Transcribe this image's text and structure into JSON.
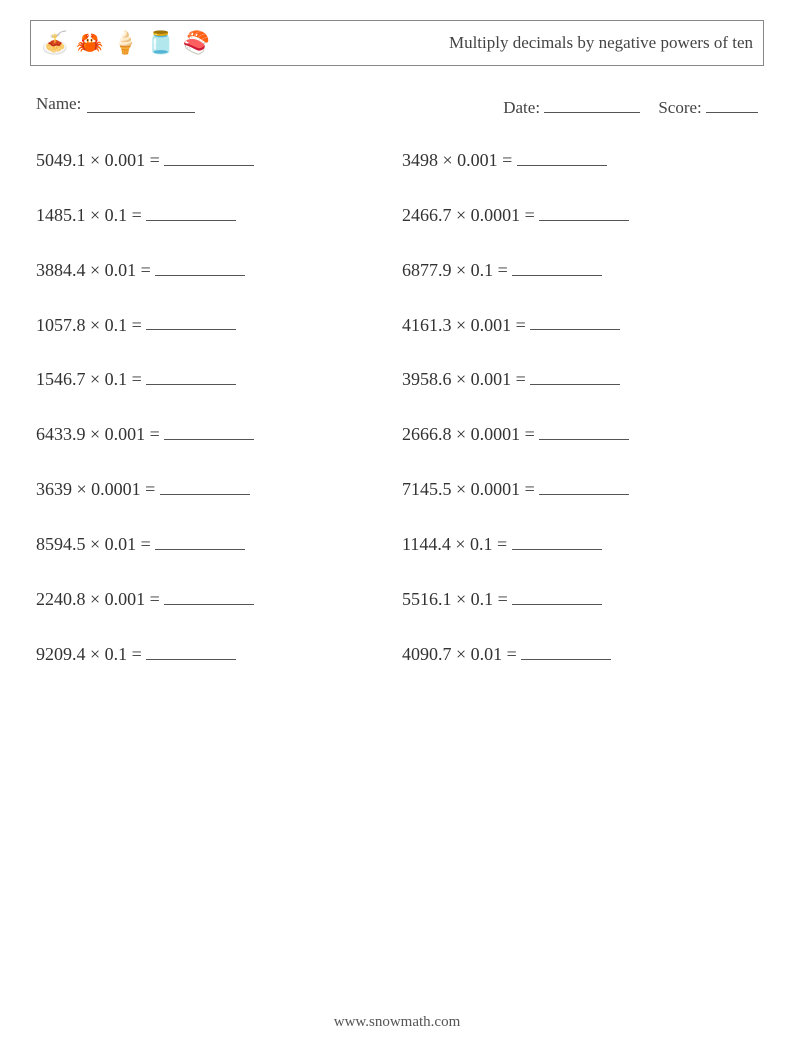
{
  "header": {
    "icons": [
      "🍝",
      "🦀",
      "🍦",
      "🫙",
      "🍣"
    ],
    "title": "Multiply decimals by negative powers of ten"
  },
  "info": {
    "name_label": "Name:",
    "date_label": "Date:",
    "score_label": "Score:",
    "blank_widths": {
      "name": 108,
      "date": 96,
      "score": 52,
      "answer": 90
    }
  },
  "problems": {
    "left": [
      {
        "a": "5049.1",
        "b": "0.001"
      },
      {
        "a": "1485.1",
        "b": "0.1"
      },
      {
        "a": "3884.4",
        "b": "0.01"
      },
      {
        "a": "1057.8",
        "b": "0.1"
      },
      {
        "a": "1546.7",
        "b": "0.1"
      },
      {
        "a": "6433.9",
        "b": "0.001"
      },
      {
        "a": "3639",
        "b": "0.0001"
      },
      {
        "a": "8594.5",
        "b": "0.01"
      },
      {
        "a": "2240.8",
        "b": "0.001"
      },
      {
        "a": "9209.4",
        "b": "0.1"
      }
    ],
    "right": [
      {
        "a": "3498",
        "b": "0.001"
      },
      {
        "a": "2466.7",
        "b": "0.0001"
      },
      {
        "a": "6877.9",
        "b": "0.1"
      },
      {
        "a": "4161.3",
        "b": "0.001"
      },
      {
        "a": "3958.6",
        "b": "0.001"
      },
      {
        "a": "2666.8",
        "b": "0.0001"
      },
      {
        "a": "7145.5",
        "b": "0.0001"
      },
      {
        "a": "1144.4",
        "b": "0.1"
      },
      {
        "a": "5516.1",
        "b": "0.1"
      },
      {
        "a": "4090.7",
        "b": "0.01"
      }
    ]
  },
  "footer": {
    "text": "www.snowmath.com"
  }
}
